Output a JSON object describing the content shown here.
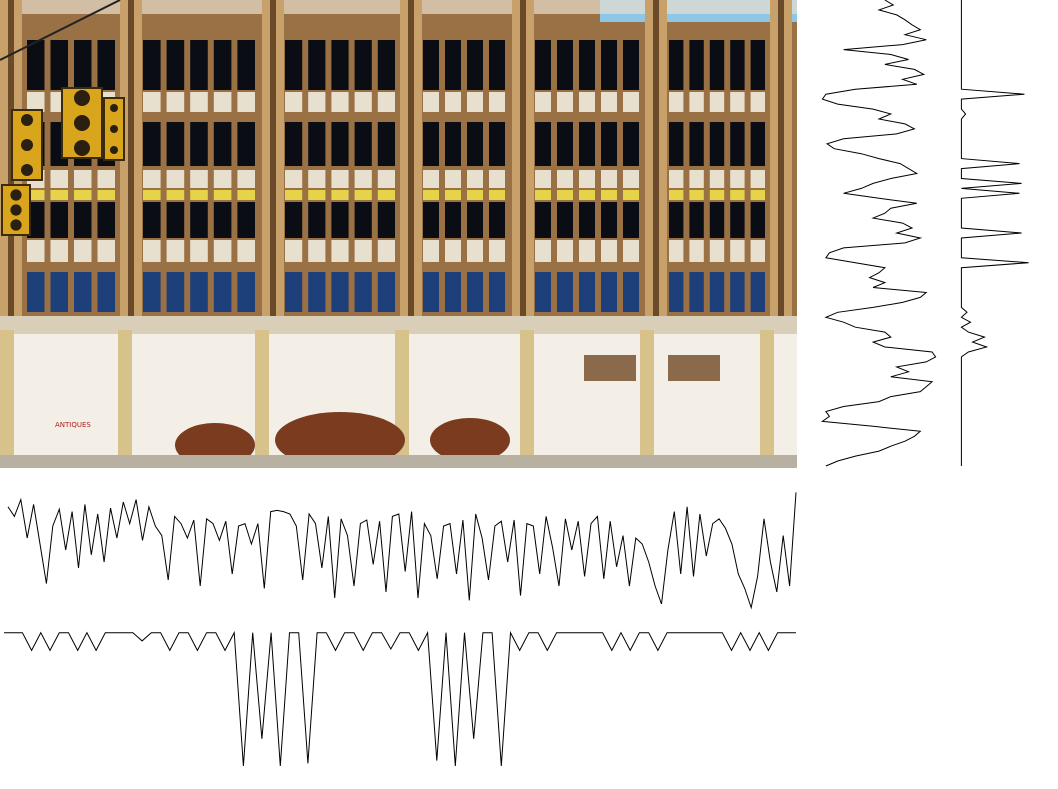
{
  "photo": {
    "sign_text": "ANTIQUES"
  },
  "colors": {
    "sky": "#8cc7e8",
    "brick_dark": "#6b4a2a",
    "brick_mid": "#9a7045",
    "pilaster": "#c8a06a",
    "window_dark": "#0a0d14",
    "window_blue": "#1d3f7a",
    "spandrel": "#e8e0cf",
    "yellow_band": "#e6d34a",
    "storefront": "#f3efe6",
    "signal_yellow": "#d8a51c",
    "plant": "#7a3b1e",
    "stroke": "#000000"
  },
  "chart_data": [
    {
      "type": "line",
      "orientation": "horizontal",
      "series": [
        {
          "values": [
            0.86,
            0.78,
            0.92,
            0.6,
            0.88,
            0.55,
            0.22,
            0.7,
            0.84,
            0.5,
            0.82,
            0.35,
            0.88,
            0.46,
            0.8,
            0.4,
            0.85,
            0.6,
            0.9,
            0.72,
            0.92,
            0.58,
            0.86,
            0.7,
            0.62,
            0.25,
            0.78,
            0.72,
            0.6,
            0.75,
            0.2,
            0.76,
            0.72,
            0.58,
            0.74,
            0.3,
            0.7,
            0.72,
            0.55,
            0.72,
            0.18,
            0.82,
            0.83,
            0.82,
            0.8,
            0.7,
            0.25,
            0.8,
            0.72,
            0.35,
            0.78,
            0.1,
            0.76,
            0.62,
            0.2,
            0.72,
            0.75,
            0.38,
            0.74,
            0.15,
            0.78,
            0.8,
            0.32,
            0.82,
            0.1,
            0.72,
            0.62,
            0.26,
            0.7,
            0.72,
            0.3,
            0.75,
            0.08,
            0.8,
            0.6,
            0.25,
            0.7,
            0.74,
            0.4,
            0.75,
            0.12,
            0.72,
            0.7,
            0.3,
            0.78,
            0.52,
            0.2,
            0.76,
            0.5,
            0.74,
            0.28,
            0.72,
            0.78,
            0.26,
            0.74,
            0.36,
            0.62,
            0.2,
            0.6,
            0.55,
            0.4,
            0.2,
            0.05,
            0.5,
            0.82,
            0.3,
            0.86,
            0.28,
            0.8,
            0.45,
            0.72,
            0.76,
            0.68,
            0.55,
            0.3,
            0.18,
            0.02,
            0.28,
            0.76,
            0.4,
            0.15,
            0.62,
            0.2,
            0.98
          ]
        }
      ]
    },
    {
      "type": "line",
      "orientation": "horizontal",
      "series": [
        {
          "values": [
            0.98,
            0.98,
            0.98,
            0.85,
            0.98,
            0.85,
            0.98,
            0.98,
            0.85,
            0.98,
            0.85,
            0.98,
            0.98,
            0.98,
            0.98,
            0.92,
            0.98,
            0.98,
            0.85,
            0.98,
            0.98,
            0.85,
            0.98,
            0.98,
            0.85,
            0.98,
            0.0,
            0.98,
            0.2,
            0.98,
            0.0,
            0.98,
            0.98,
            0.02,
            0.98,
            0.98,
            0.85,
            0.98,
            0.98,
            0.85,
            0.98,
            0.98,
            0.86,
            0.98,
            0.98,
            0.85,
            0.98,
            0.04,
            0.98,
            0.0,
            0.98,
            0.2,
            0.98,
            0.98,
            0.0,
            0.98,
            0.85,
            0.98,
            0.98,
            0.85,
            0.98,
            0.98,
            0.98,
            0.98,
            0.98,
            0.98,
            0.85,
            0.98,
            0.85,
            0.98,
            0.98,
            0.85,
            0.98,
            0.98,
            0.98,
            0.98,
            0.98,
            0.98,
            0.98,
            0.85,
            0.98,
            0.85,
            0.98,
            0.85,
            0.98,
            0.98,
            0.98
          ]
        }
      ]
    },
    {
      "type": "line",
      "orientation": "vertical",
      "series": [
        {
          "values": [
            0.55,
            0.62,
            0.5,
            0.65,
            0.72,
            0.78,
            0.85,
            0.72,
            0.9,
            0.7,
            0.2,
            0.6,
            0.75,
            0.55,
            0.8,
            0.88,
            0.7,
            0.82,
            0.3,
            0.05,
            0.02,
            0.15,
            0.45,
            0.6,
            0.5,
            0.72,
            0.8,
            0.65,
            0.2,
            0.06,
            0.12,
            0.35,
            0.5,
            0.68,
            0.75,
            0.82,
            0.6,
            0.45,
            0.35,
            0.2,
            0.5,
            0.82,
            0.6,
            0.55,
            0.45,
            0.7,
            0.78,
            0.65,
            0.85,
            0.72,
            0.2,
            0.08,
            0.05,
            0.3,
            0.55,
            0.5,
            0.42,
            0.55,
            0.45,
            0.9,
            0.85,
            0.7,
            0.45,
            0.15,
            0.05,
            0.2,
            0.3,
            0.55,
            0.6,
            0.45,
            0.55,
            0.95,
            0.98,
            0.9,
            0.65,
            0.75,
            0.6,
            0.95,
            0.9,
            0.85,
            0.6,
            0.5,
            0.2,
            0.05,
            0.08,
            0.02,
            0.45,
            0.85,
            0.8,
            0.72,
            0.6,
            0.5,
            0.3,
            0.15,
            0.05
          ]
        }
      ]
    },
    {
      "type": "line",
      "orientation": "vertical",
      "series": [
        {
          "values": [
            0.02,
            0.02,
            0.02,
            0.02,
            0.02,
            0.02,
            0.02,
            0.02,
            0.02,
            0.02,
            0.02,
            0.02,
            0.02,
            0.02,
            0.02,
            0.02,
            0.02,
            0.02,
            0.02,
            0.92,
            0.02,
            0.02,
            0.02,
            0.08,
            0.02,
            0.02,
            0.02,
            0.02,
            0.02,
            0.02,
            0.02,
            0.02,
            0.02,
            0.85,
            0.02,
            0.02,
            0.02,
            0.88,
            0.02,
            0.85,
            0.02,
            0.02,
            0.02,
            0.02,
            0.02,
            0.02,
            0.02,
            0.88,
            0.02,
            0.02,
            0.02,
            0.02,
            0.02,
            0.98,
            0.02,
            0.02,
            0.02,
            0.02,
            0.02,
            0.02,
            0.02,
            0.02,
            0.02,
            0.1,
            0.02,
            0.15,
            0.02,
            0.12,
            0.35,
            0.18,
            0.38,
            0.12,
            0.02,
            0.02,
            0.02,
            0.02,
            0.02,
            0.02,
            0.02,
            0.02,
            0.02,
            0.02,
            0.02,
            0.02,
            0.02,
            0.02,
            0.02,
            0.02,
            0.02,
            0.02,
            0.02,
            0.02,
            0.02,
            0.02,
            0.02
          ]
        }
      ]
    }
  ]
}
